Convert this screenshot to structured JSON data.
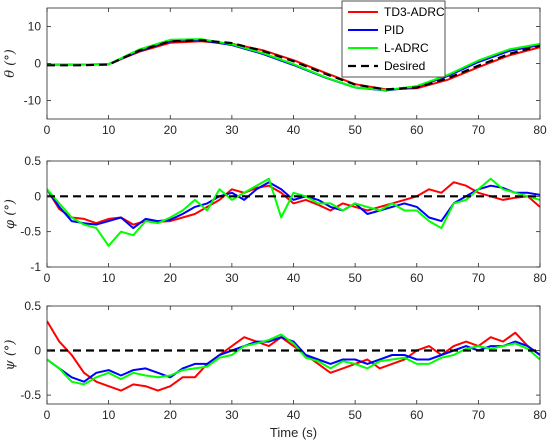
{
  "chart_data": [
    {
      "type": "line",
      "ylabel": "θ (°)",
      "xlim": [
        0,
        80
      ],
      "ylim": [
        -15,
        15
      ],
      "xticks": [
        0,
        10,
        20,
        30,
        40,
        50,
        60,
        70,
        80
      ],
      "yticks": [
        -10,
        0,
        10
      ],
      "grid": false,
      "legend_position": "top-right",
      "x": [
        0,
        5,
        10,
        15,
        20,
        25,
        30,
        35,
        40,
        45,
        50,
        55,
        60,
        65,
        70,
        75,
        80
      ],
      "series": [
        {
          "name": "TD3-ADRC",
          "color": "#ff0000",
          "values": [
            -0.3,
            -0.3,
            -0.2,
            3.2,
            5.6,
            6.0,
            5.3,
            3.6,
            0.9,
            -2.4,
            -5.6,
            -7.0,
            -6.7,
            -4.4,
            -1.0,
            2.2,
            4.4
          ]
        },
        {
          "name": "PID",
          "color": "#0000ff",
          "values": [
            -0.3,
            -0.3,
            -0.2,
            3.4,
            6.0,
            6.3,
            5.0,
            2.6,
            -0.4,
            -3.7,
            -6.5,
            -7.3,
            -6.3,
            -3.4,
            0.4,
            3.4,
            5.0
          ]
        },
        {
          "name": "L-ADRC",
          "color": "#00ff00",
          "values": [
            -0.3,
            -0.3,
            -0.2,
            3.8,
            6.4,
            6.6,
            5.2,
            2.8,
            -0.2,
            -3.6,
            -6.5,
            -7.2,
            -6.1,
            -3.1,
            0.8,
            3.8,
            5.3
          ]
        },
        {
          "name": "Desired",
          "color": "#000000",
          "dash": true,
          "values": [
            -0.5,
            -0.5,
            -0.3,
            3.5,
            6.0,
            6.3,
            5.5,
            3.4,
            0.6,
            -2.7,
            -5.7,
            -7.0,
            -6.5,
            -4.0,
            -0.6,
            2.6,
            4.8
          ]
        }
      ]
    },
    {
      "type": "line",
      "ylabel": "φ (°)",
      "xlim": [
        0,
        80
      ],
      "ylim": [
        -1,
        0.5
      ],
      "xticks": [
        0,
        10,
        20,
        30,
        40,
        50,
        60,
        70,
        80
      ],
      "yticks": [
        -1,
        -0.5,
        0,
        0.5
      ],
      "grid": false,
      "x": [
        0,
        2,
        4,
        6,
        8,
        10,
        12,
        14,
        16,
        18,
        20,
        22,
        24,
        26,
        28,
        30,
        32,
        34,
        36,
        38,
        40,
        42,
        44,
        46,
        48,
        50,
        52,
        54,
        56,
        58,
        60,
        62,
        64,
        66,
        68,
        70,
        72,
        74,
        76,
        78,
        80
      ],
      "series": [
        {
          "name": "TD3-ADRC",
          "color": "#ff0000",
          "values": [
            0.1,
            -0.18,
            -0.3,
            -0.32,
            -0.38,
            -0.32,
            -0.3,
            -0.4,
            -0.35,
            -0.36,
            -0.35,
            -0.3,
            -0.25,
            -0.15,
            -0.05,
            0.1,
            0.05,
            0.12,
            0.15,
            0.05,
            -0.1,
            -0.05,
            -0.12,
            -0.2,
            -0.1,
            -0.15,
            -0.2,
            -0.15,
            -0.1,
            -0.05,
            0.0,
            0.1,
            0.05,
            0.2,
            0.15,
            0.05,
            0.0,
            -0.05,
            -0.02,
            0.0,
            -0.15
          ]
        },
        {
          "name": "PID",
          "color": "#0000ff",
          "values": [
            0.1,
            -0.15,
            -0.35,
            -0.38,
            -0.4,
            -0.35,
            -0.3,
            -0.45,
            -0.32,
            -0.35,
            -0.33,
            -0.25,
            -0.15,
            -0.1,
            0.0,
            0.05,
            -0.05,
            0.1,
            0.2,
            0.1,
            -0.05,
            0.0,
            -0.05,
            -0.15,
            -0.2,
            -0.1,
            -0.25,
            -0.2,
            -0.15,
            -0.1,
            -0.15,
            -0.3,
            -0.35,
            -0.1,
            0.0,
            0.1,
            0.15,
            0.12,
            0.05,
            0.05,
            0.02
          ]
        },
        {
          "name": "L-ADRC",
          "color": "#00ff00",
          "values": [
            0.1,
            -0.1,
            -0.3,
            -0.4,
            -0.45,
            -0.7,
            -0.5,
            -0.55,
            -0.35,
            -0.38,
            -0.3,
            -0.2,
            -0.05,
            -0.2,
            0.1,
            -0.05,
            0.05,
            0.15,
            0.25,
            -0.3,
            0.05,
            0.0,
            -0.1,
            -0.1,
            -0.2,
            -0.1,
            -0.15,
            -0.2,
            -0.1,
            -0.2,
            -0.2,
            -0.35,
            -0.45,
            -0.1,
            -0.05,
            0.1,
            0.25,
            0.1,
            0.05,
            0.0,
            -0.05
          ]
        },
        {
          "name": "Desired",
          "color": "#000000",
          "dash": true,
          "values": [
            0,
            0,
            0,
            0,
            0,
            0,
            0,
            0,
            0,
            0,
            0,
            0,
            0,
            0,
            0,
            0,
            0,
            0,
            0,
            0,
            0,
            0,
            0,
            0,
            0,
            0,
            0,
            0,
            0,
            0,
            0,
            0,
            0,
            0,
            0,
            0,
            0,
            0,
            0,
            0,
            0
          ]
        }
      ]
    },
    {
      "type": "line",
      "ylabel": "ψ (°)",
      "xlabel": "Time (s)",
      "xlim": [
        0,
        80
      ],
      "ylim": [
        -0.6,
        0.5
      ],
      "xticks": [
        0,
        10,
        20,
        30,
        40,
        50,
        60,
        70,
        80
      ],
      "yticks": [
        -0.5,
        0,
        0.5
      ],
      "grid": false,
      "x": [
        0,
        2,
        4,
        6,
        8,
        10,
        12,
        14,
        16,
        18,
        20,
        22,
        24,
        26,
        28,
        30,
        32,
        34,
        36,
        38,
        40,
        42,
        44,
        46,
        48,
        50,
        52,
        54,
        56,
        58,
        60,
        62,
        64,
        66,
        68,
        70,
        72,
        74,
        76,
        78,
        80
      ],
      "series": [
        {
          "name": "TD3-ADRC",
          "color": "#ff0000",
          "values": [
            0.33,
            0.1,
            -0.05,
            -0.25,
            -0.35,
            -0.4,
            -0.45,
            -0.38,
            -0.4,
            -0.45,
            -0.4,
            -0.3,
            -0.3,
            -0.15,
            -0.05,
            0.05,
            0.15,
            0.1,
            0.05,
            0.15,
            0.05,
            -0.05,
            -0.15,
            -0.25,
            -0.2,
            -0.15,
            -0.1,
            -0.2,
            -0.15,
            -0.1,
            0.0,
            0.05,
            -0.05,
            0.05,
            0.1,
            0.05,
            0.15,
            0.1,
            0.2,
            0.05,
            -0.05
          ]
        },
        {
          "name": "PID",
          "color": "#0000ff",
          "values": [
            -0.1,
            -0.2,
            -0.3,
            -0.35,
            -0.25,
            -0.22,
            -0.28,
            -0.22,
            -0.2,
            -0.25,
            -0.3,
            -0.2,
            -0.15,
            -0.15,
            -0.05,
            0.0,
            0.05,
            0.1,
            0.1,
            0.15,
            0.1,
            -0.05,
            -0.1,
            -0.15,
            -0.1,
            -0.1,
            -0.15,
            -0.1,
            -0.05,
            -0.05,
            -0.1,
            -0.1,
            -0.05,
            0.0,
            0.05,
            0.0,
            0.05,
            0.05,
            0.1,
            0.05,
            -0.05
          ]
        },
        {
          "name": "L-ADRC",
          "color": "#00ff00",
          "values": [
            -0.1,
            -0.2,
            -0.35,
            -0.38,
            -0.3,
            -0.25,
            -0.32,
            -0.25,
            -0.28,
            -0.3,
            -0.28,
            -0.22,
            -0.2,
            -0.18,
            -0.08,
            -0.05,
            0.05,
            0.08,
            0.12,
            0.18,
            0.08,
            -0.08,
            -0.12,
            -0.2,
            -0.12,
            -0.15,
            -0.2,
            -0.12,
            -0.1,
            -0.08,
            -0.15,
            -0.15,
            -0.08,
            -0.05,
            0.02,
            0.05,
            0.02,
            0.05,
            0.08,
            0.02,
            -0.1
          ]
        },
        {
          "name": "Desired",
          "color": "#000000",
          "dash": true,
          "values": [
            0,
            0,
            0,
            0,
            0,
            0,
            0,
            0,
            0,
            0,
            0,
            0,
            0,
            0,
            0,
            0,
            0,
            0,
            0,
            0,
            0,
            0,
            0,
            0,
            0,
            0,
            0,
            0,
            0,
            0,
            0,
            0,
            0,
            0,
            0,
            0,
            0,
            0,
            0,
            0,
            0
          ]
        }
      ]
    }
  ]
}
